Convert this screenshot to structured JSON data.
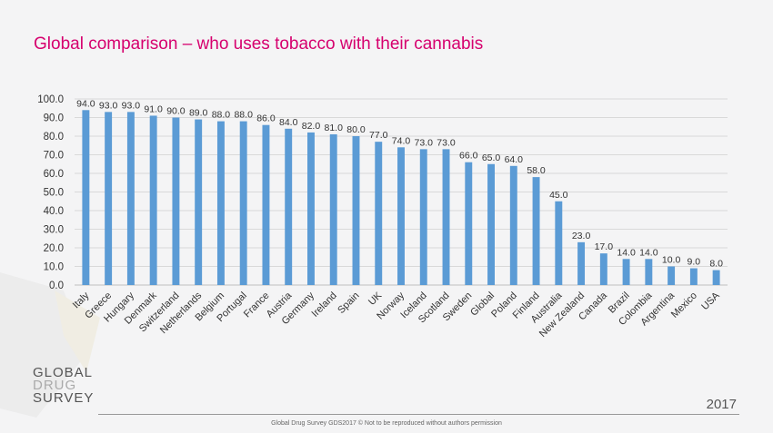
{
  "title": "Global comparison – who uses tobacco with their cannabis",
  "logo": {
    "line1": "GLOBAL",
    "line2": "DRUG",
    "line3": "SURVEY"
  },
  "year": "2017",
  "footer": "Global Drug Survey GDS2017 © Not to be reproduced without authors permission",
  "colors": {
    "bar": "#5b9bd5",
    "title": "#d6006e",
    "grid": "#d9d9d9",
    "text": "#333333"
  },
  "chart_data": {
    "type": "bar",
    "title": "Global comparison – who uses tobacco with their cannabis",
    "categories": [
      "Italy",
      "Greece",
      "Hungary",
      "Denmark",
      "Switzerland",
      "Netherlands",
      "Belgium",
      "Portugal",
      "France",
      "Austria",
      "Germany",
      "Ireland",
      "Spain",
      "UK",
      "Norway",
      "Iceland",
      "Scotland",
      "Sweden",
      "Global",
      "Poland",
      "Finland",
      "Australia",
      "New Zealand",
      "Canada",
      "Brazil",
      "Colombia",
      "Argentina",
      "Mexico",
      "USA"
    ],
    "values": [
      94.0,
      93.0,
      93.0,
      91.0,
      90.0,
      89.0,
      88.0,
      88.0,
      86.0,
      84.0,
      82.0,
      81.0,
      80.0,
      77.0,
      74.0,
      73.0,
      73.0,
      66.0,
      65.0,
      64.0,
      58.0,
      45.0,
      23.0,
      17.0,
      14.0,
      14.0,
      10.0,
      9.0,
      8.0
    ],
    "value_labels": [
      "94.0",
      "93.0",
      "93.0",
      "91.0",
      "90.0",
      "89.0",
      "88.0",
      "88.0",
      "86.0",
      "84.0",
      "82.0",
      "81.0",
      "80.0",
      "77.0",
      "74.0",
      "73.0",
      "73.0",
      "66.0",
      "65.0",
      "64.0",
      "58.0",
      "45.0",
      "23.0",
      "17.0",
      "14.0",
      "14.0",
      "10.0",
      "9.0",
      "8.0"
    ],
    "yticks": [
      "0.0",
      "10.0",
      "20.0",
      "30.0",
      "40.0",
      "50.0",
      "60.0",
      "70.0",
      "80.0",
      "90.0",
      "100.0"
    ],
    "ylim": [
      0,
      100
    ],
    "xlabel": "",
    "ylabel": "",
    "grid": true
  }
}
